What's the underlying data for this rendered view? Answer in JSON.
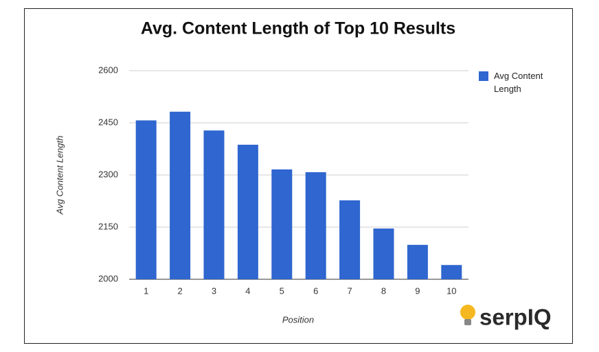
{
  "chart_data": {
    "type": "bar",
    "title": "Avg. Content Length of Top 10 Results",
    "x_label": "Position",
    "y_label": "Avg Content Length",
    "categories": [
      "1",
      "2",
      "3",
      "4",
      "5",
      "6",
      "7",
      "8",
      "9",
      "10"
    ],
    "series": [
      {
        "name": "Avg Content Length",
        "color": "#2f66cf",
        "values": [
          2457,
          2482,
          2428,
          2387,
          2316,
          2308,
          2227,
          2146,
          2099,
          2041
        ]
      }
    ],
    "ylim": [
      2000,
      2600
    ],
    "yticks": [
      2000,
      2150,
      2300,
      2450,
      2600
    ],
    "grid": true,
    "legend": "right",
    "logo": "serpIQ"
  }
}
